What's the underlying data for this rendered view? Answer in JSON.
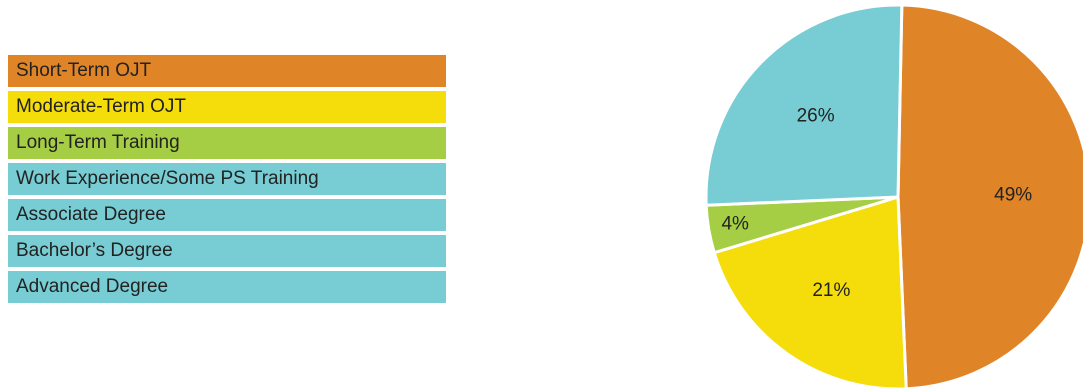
{
  "chart_data": {
    "type": "pie",
    "legend": [
      {
        "label": "Short-Term OJT",
        "color": "#E08428"
      },
      {
        "label": "Moderate-Term OJT",
        "color": "#F5DC0B"
      },
      {
        "label": "Long-Term Training",
        "color": "#A5CE44"
      },
      {
        "label": "Work Experience/Some PS Training",
        "color": "#77CDD3"
      },
      {
        "label": "Associate Degree",
        "color": "#77CDD3"
      },
      {
        "label": "Bachelor’s Degree",
        "color": "#77CDD3"
      },
      {
        "label": "Advanced Degree",
        "color": "#77CDD3"
      }
    ],
    "slices": [
      {
        "label": "49%",
        "value": 49,
        "color": "#E08428"
      },
      {
        "label": "21%",
        "value": 21,
        "color": "#F5DC0B"
      },
      {
        "label": "4%",
        "value": 4,
        "color": "#A5CE44"
      },
      {
        "label": "26%",
        "value": 26,
        "color": "#77CDD3"
      }
    ]
  }
}
